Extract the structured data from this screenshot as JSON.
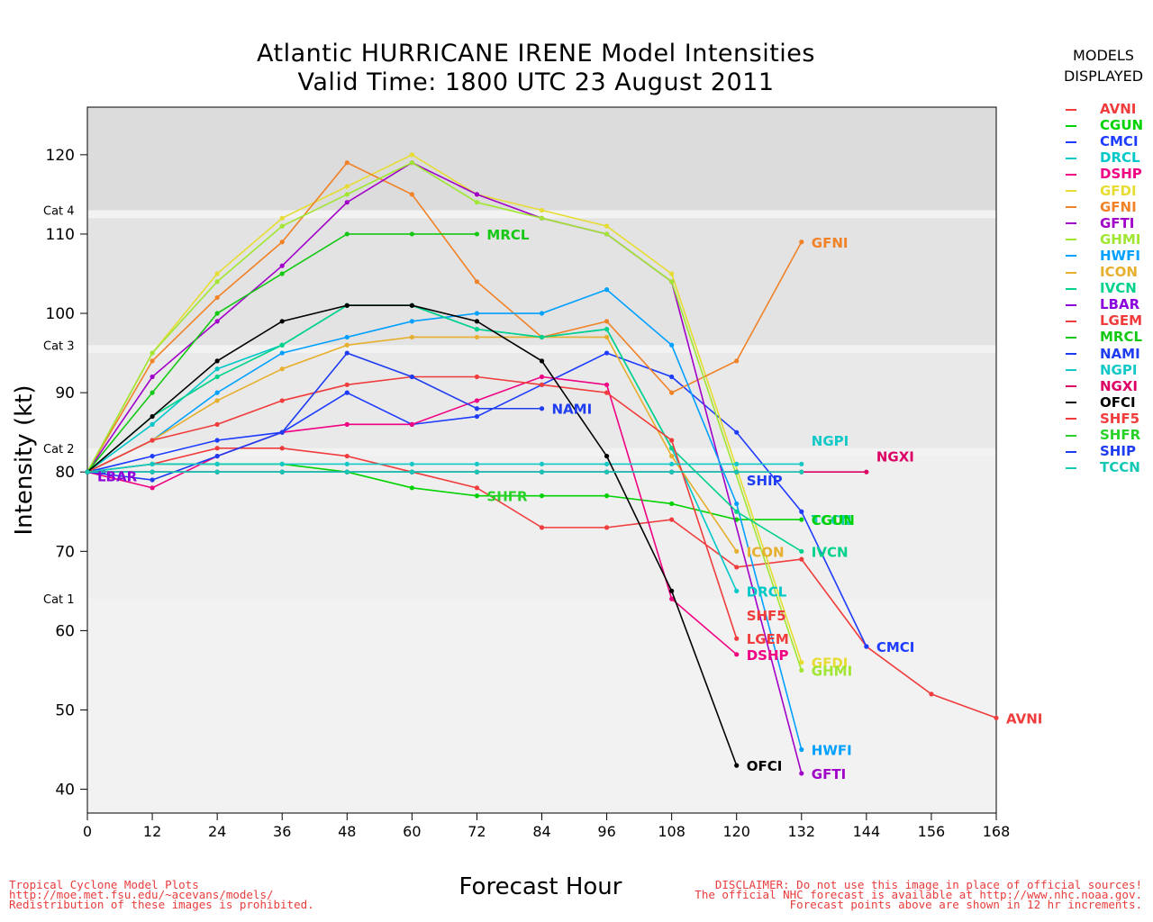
{
  "header": {
    "title_line1": "Atlantic HURRICANE IRENE Model Intensities",
    "title_line2": "Valid Time: 1800 UTC 23 August 2011"
  },
  "legend": {
    "heading_line1": "MODELS",
    "heading_line2": "DISPLAYED"
  },
  "footer": {
    "left": [
      "Tropical Cyclone Model Plots",
      "http://moe.met.fsu.edu/~acevans/models/",
      "Redistribution of these images is prohibited."
    ],
    "right": [
      "DISCLAIMER: Do not use this image in place of official sources!",
      "The official NHC forecast is available at http://www.nhc.noaa.gov.",
      "Forecast points above are shown in 12 hr increments."
    ]
  },
  "chart_data": {
    "type": "line",
    "xlabel": "Forecast Hour",
    "ylabel": "Intensity (kt)",
    "xlim": [
      0,
      168
    ],
    "ylim": [
      37,
      126
    ],
    "xticks": [
      0,
      12,
      24,
      36,
      48,
      60,
      72,
      84,
      96,
      108,
      120,
      132,
      144,
      156,
      168
    ],
    "yticks": [
      40,
      50,
      60,
      70,
      80,
      90,
      100,
      110,
      120
    ],
    "category_bands": [
      {
        "label": "Cat 1",
        "from": 64,
        "to": 82
      },
      {
        "label": "Cat 2",
        "from": 83,
        "to": 95
      },
      {
        "label": "Cat 3",
        "from": 96,
        "to": 112
      },
      {
        "label": "Cat 4",
        "from": 113,
        "to": 136
      }
    ],
    "series": [
      {
        "name": "AVNI",
        "color": "#f03c3c",
        "x": [
          0,
          12,
          24,
          36,
          48,
          60,
          72,
          84,
          96,
          108,
          120,
          132,
          144,
          156,
          168
        ],
        "y": [
          80,
          81,
          83,
          83,
          82,
          80,
          78,
          73,
          73,
          74,
          68,
          69,
          58,
          52,
          49
        ]
      },
      {
        "name": "CGUN",
        "color": "#00d200",
        "x": [
          0,
          12,
          24,
          36,
          48,
          60,
          72,
          84,
          96,
          108,
          120,
          132
        ],
        "y": [
          80,
          81,
          81,
          81,
          80,
          78,
          77,
          77,
          77,
          76,
          74,
          74
        ]
      },
      {
        "name": "CMCI",
        "color": "#1e3cff",
        "x": [
          0,
          12,
          24,
          36,
          48,
          60,
          72,
          84,
          96,
          108,
          120,
          132,
          144
        ],
        "y": [
          80,
          82,
          84,
          85,
          90,
          86,
          87,
          91,
          95,
          92,
          85,
          75,
          58
        ]
      },
      {
        "name": "DRCL",
        "color": "#00c8c8",
        "x": [
          0,
          12,
          24,
          36,
          48,
          60,
          72,
          84,
          96,
          108,
          120
        ],
        "y": [
          80,
          86,
          93,
          96,
          101,
          101,
          98,
          97,
          98,
          83,
          65
        ]
      },
      {
        "name": "DSHP",
        "color": "#f00082",
        "x": [
          0,
          12,
          24,
          36,
          48,
          60,
          72,
          84,
          96,
          108,
          120
        ],
        "y": [
          80,
          78,
          82,
          85,
          86,
          86,
          89,
          92,
          91,
          64,
          57
        ]
      },
      {
        "name": "GFDI",
        "color": "#e6dc32",
        "x": [
          0,
          12,
          24,
          36,
          48,
          60,
          72,
          84,
          96,
          108,
          132
        ],
        "y": [
          80,
          95,
          105,
          112,
          116,
          120,
          115,
          113,
          111,
          105,
          56
        ]
      },
      {
        "name": "GFNI",
        "color": "#f08228",
        "x": [
          0,
          12,
          24,
          36,
          48,
          60,
          72,
          84,
          96,
          108,
          120,
          132
        ],
        "y": [
          80,
          94,
          102,
          109,
          119,
          115,
          104,
          97,
          99,
          90,
          94,
          109
        ]
      },
      {
        "name": "GFTI",
        "color": "#a000c8",
        "x": [
          0,
          12,
          24,
          36,
          48,
          60,
          72,
          84,
          96,
          108,
          132
        ],
        "y": [
          80,
          92,
          99,
          106,
          114,
          119,
          115,
          112,
          110,
          104,
          42
        ]
      },
      {
        "name": "GHMI",
        "color": "#a0e632",
        "x": [
          0,
          12,
          24,
          36,
          48,
          60,
          72,
          84,
          96,
          108,
          132
        ],
        "y": [
          80,
          95,
          104,
          111,
          115,
          119,
          114,
          112,
          110,
          104,
          55
        ]
      },
      {
        "name": "HWFI",
        "color": "#00a0ff",
        "x": [
          0,
          12,
          24,
          36,
          48,
          60,
          72,
          84,
          96,
          108,
          120,
          132
        ],
        "y": [
          80,
          84,
          90,
          95,
          97,
          99,
          100,
          100,
          103,
          96,
          76,
          45
        ]
      },
      {
        "name": "ICON",
        "color": "#e6af2d",
        "x": [
          0,
          12,
          24,
          36,
          48,
          60,
          72,
          84,
          96,
          108,
          120
        ],
        "y": [
          80,
          84,
          89,
          93,
          96,
          97,
          97,
          97,
          97,
          82,
          70
        ]
      },
      {
        "name": "IVCN",
        "color": "#00d28c",
        "x": [
          0,
          12,
          24,
          36,
          48,
          60,
          72,
          84,
          96,
          108,
          120,
          132
        ],
        "y": [
          80,
          87,
          92,
          96,
          101,
          101,
          98,
          97,
          98,
          83,
          75,
          70
        ]
      },
      {
        "name": "LBAR",
        "color": "#8c00dc",
        "x": [
          0,
          3
        ],
        "y": [
          80,
          80
        ]
      },
      {
        "name": "LGEM",
        "color": "#f03c3c",
        "x": [
          0,
          12,
          24,
          36,
          48,
          60,
          72,
          84,
          96,
          108,
          120
        ],
        "y": [
          80,
          84,
          86,
          89,
          91,
          92,
          92,
          91,
          90,
          84,
          59
        ]
      },
      {
        "name": "MRCL",
        "color": "#14c814",
        "x": [
          0,
          12,
          24,
          36,
          48,
          60,
          72
        ],
        "y": [
          80,
          90,
          100,
          105,
          110,
          110,
          110
        ]
      },
      {
        "name": "NAMI",
        "color": "#1e3cf0",
        "x": [
          0,
          12,
          24,
          36,
          48,
          60,
          72,
          84
        ],
        "y": [
          80,
          79,
          82,
          85,
          95,
          92,
          88,
          88
        ]
      },
      {
        "name": "NGPI",
        "color": "#14c8c8",
        "x": [
          0,
          12,
          24,
          36,
          48,
          60,
          72,
          84,
          96,
          108,
          120,
          132
        ],
        "y": [
          80,
          81,
          81,
          81,
          81,
          81,
          81,
          81,
          81,
          81,
          81,
          81
        ]
      },
      {
        "name": "NGXI",
        "color": "#dc0064",
        "x": [
          0,
          12,
          24,
          36,
          48,
          60,
          72,
          84,
          96,
          108,
          120,
          132,
          144
        ],
        "y": [
          80,
          80,
          80,
          80,
          80,
          80,
          80,
          80,
          80,
          80,
          80,
          80,
          80
        ]
      },
      {
        "name": "OFCI",
        "color": "#000000",
        "x": [
          0,
          12,
          24,
          36,
          48,
          60,
          72,
          84,
          96,
          108,
          120
        ],
        "y": [
          80,
          87,
          94,
          99,
          101,
          101,
          99,
          94,
          82,
          65,
          43
        ]
      },
      {
        "name": "SHF5",
        "color": "#f03c3c",
        "x": [
          0,
          12,
          24,
          36,
          48,
          60,
          72,
          84,
          96,
          108,
          120
        ],
        "y": [
          80,
          80,
          80,
          80,
          80,
          80,
          80,
          80,
          80,
          80,
          80
        ]
      },
      {
        "name": "SHFR",
        "color": "#28d228",
        "x": [
          0,
          12,
          24,
          36,
          48,
          60,
          72
        ],
        "y": [
          80,
          80,
          80,
          80,
          80,
          80,
          80
        ]
      },
      {
        "name": "SHIP",
        "color": "#1e3cf0",
        "x": [
          0,
          12,
          24,
          36,
          48,
          60,
          72,
          84,
          96,
          108,
          120
        ],
        "y": [
          80,
          80,
          80,
          80,
          80,
          80,
          80,
          80,
          80,
          80,
          80
        ]
      },
      {
        "name": "TCCN",
        "color": "#14c8b4",
        "x": [
          0,
          12,
          24,
          36,
          48,
          60,
          72,
          84,
          96,
          108,
          120,
          132
        ],
        "y": [
          80,
          80,
          80,
          80,
          80,
          80,
          80,
          80,
          80,
          80,
          80,
          80
        ]
      }
    ],
    "end_labels": [
      {
        "name": "AVNI",
        "x": 168,
        "y": 49
      },
      {
        "name": "CMCI",
        "x": 144,
        "y": 58
      },
      {
        "name": "GFNI",
        "x": 132,
        "y": 109
      },
      {
        "name": "NGPI",
        "x": 132,
        "y": 84
      },
      {
        "name": "NGXI",
        "x": 144,
        "y": 82
      },
      {
        "name": "SHIP",
        "x": 120,
        "y": 79
      },
      {
        "name": "TCCN",
        "x": 132,
        "y": 74
      },
      {
        "name": "CGUN",
        "x": 132,
        "y": 74
      },
      {
        "name": "IVCN",
        "x": 132,
        "y": 70
      },
      {
        "name": "ICON",
        "x": 120,
        "y": 70
      },
      {
        "name": "DRCL",
        "x": 120,
        "y": 65
      },
      {
        "name": "SHF5",
        "x": 120,
        "y": 62
      },
      {
        "name": "LGEM",
        "x": 120,
        "y": 59
      },
      {
        "name": "DSHP",
        "x": 120,
        "y": 57
      },
      {
        "name": "GFDI",
        "x": 132,
        "y": 56
      },
      {
        "name": "GHMI",
        "x": 132,
        "y": 55
      },
      {
        "name": "HWFI",
        "x": 132,
        "y": 45
      },
      {
        "name": "GFTI",
        "x": 132,
        "y": 42
      },
      {
        "name": "OFCI",
        "x": 120,
        "y": 43
      },
      {
        "name": "MRCL",
        "x": 72,
        "y": 110
      },
      {
        "name": "NAMI",
        "x": 84,
        "y": 88
      },
      {
        "name": "SHFR",
        "x": 72,
        "y": 77
      },
      {
        "name": "LBAR",
        "x": 0,
        "y": 79.5
      }
    ]
  }
}
